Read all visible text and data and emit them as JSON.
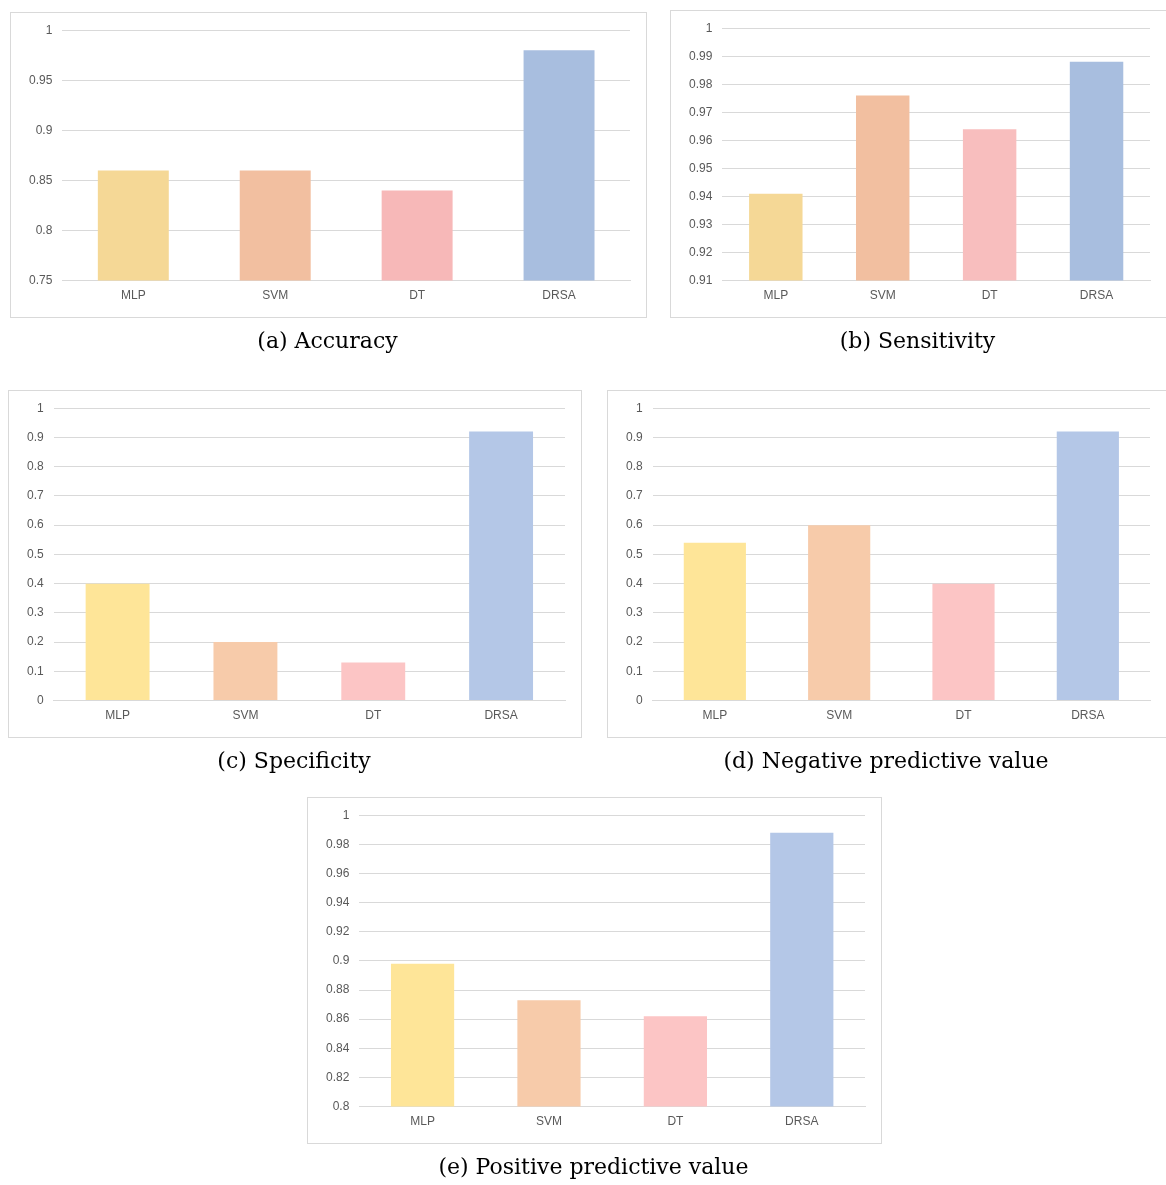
{
  "chart_data": [
    {
      "type": "bar",
      "title": "(a)  Accuracy",
      "categories": [
        "MLP",
        "SVM",
        "DT",
        "DRSA"
      ],
      "values": [
        0.86,
        0.86,
        0.84,
        0.98
      ],
      "colors": [
        "#f5d896",
        "#f2bfa0",
        "#f7b8b8",
        "#a8bedf"
      ],
      "ylim": [
        0.75,
        1
      ],
      "yticks": [
        0.75,
        0.8,
        0.85,
        0.9,
        0.95,
        1
      ],
      "grid": "y"
    },
    {
      "type": "bar",
      "title": "(b)  Sensitivity",
      "categories": [
        "MLP",
        "SVM",
        "DT",
        "DRSA"
      ],
      "values": [
        0.941,
        0.976,
        0.964,
        0.988
      ],
      "colors": [
        "#f5d896",
        "#f2bfa0",
        "#f8bebe",
        "#a8bedf"
      ],
      "ylim": [
        0.91,
        1
      ],
      "yticks": [
        0.91,
        0.92,
        0.93,
        0.94,
        0.95,
        0.96,
        0.97,
        0.98,
        0.99,
        1
      ],
      "grid": "y"
    },
    {
      "type": "bar",
      "title": "(c)  Specificity",
      "categories": [
        "MLP",
        "SVM",
        "DT",
        "DRSA"
      ],
      "values": [
        0.4,
        0.2,
        0.13,
        0.92
      ],
      "colors": [
        "#fee598",
        "#f7cbaa",
        "#fcc5c5",
        "#b4c7e7"
      ],
      "ylim": [
        0,
        1
      ],
      "yticks": [
        0,
        0.1,
        0.2,
        0.3,
        0.4,
        0.5,
        0.6,
        0.7,
        0.8,
        0.9,
        1
      ],
      "grid": "y"
    },
    {
      "type": "bar",
      "title": "(d)  Negative predictive value",
      "categories": [
        "MLP",
        "SVM",
        "DT",
        "DRSA"
      ],
      "values": [
        0.54,
        0.6,
        0.4,
        0.92
      ],
      "colors": [
        "#fee598",
        "#f7cbaa",
        "#fcc5c5",
        "#b4c7e7"
      ],
      "ylim": [
        0,
        1
      ],
      "yticks": [
        0,
        0.1,
        0.2,
        0.3,
        0.4,
        0.5,
        0.6,
        0.7,
        0.8,
        0.9,
        1
      ],
      "grid": "y"
    },
    {
      "type": "bar",
      "title": "(e)  Positive predictive value",
      "categories": [
        "MLP",
        "SVM",
        "DT",
        "DRSA"
      ],
      "values": [
        0.898,
        0.873,
        0.862,
        0.988
      ],
      "colors": [
        "#fee598",
        "#f7cbaa",
        "#fcc5c5",
        "#b4c7e7"
      ],
      "ylim": [
        0.8,
        1
      ],
      "yticks": [
        0.8,
        0.82,
        0.84,
        0.86,
        0.88,
        0.9,
        0.92,
        0.94,
        0.96,
        0.98,
        1
      ],
      "grid": "y"
    }
  ]
}
